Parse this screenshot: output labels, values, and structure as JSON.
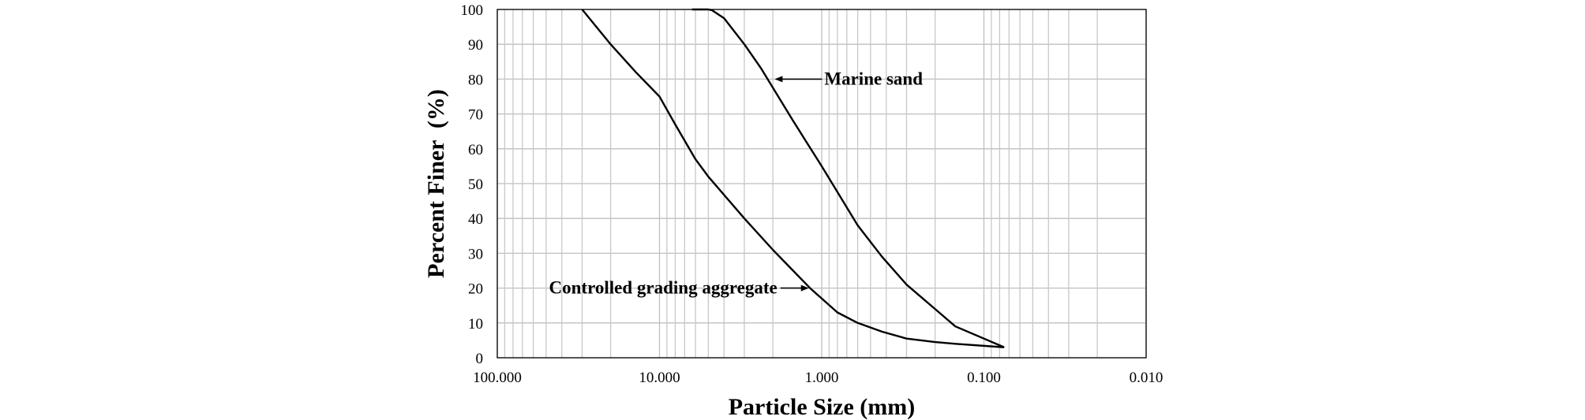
{
  "chart_data": {
    "type": "line",
    "title": "",
    "xlabel": "Particle Size (mm)",
    "ylabel": "Percent Finer  (%)",
    "x_scale": "log",
    "x_reversed": true,
    "xlim": [
      100,
      0.01
    ],
    "ylim": [
      0,
      100
    ],
    "x_ticks": [
      100,
      10,
      1,
      0.1,
      0.01
    ],
    "x_tick_labels": [
      "100.000",
      "10.000",
      "1.000",
      "0.100",
      "0.010"
    ],
    "y_ticks": [
      0,
      10,
      20,
      30,
      40,
      50,
      60,
      70,
      80,
      90,
      100
    ],
    "y_tick_labels": [
      "0",
      "10",
      "20",
      "30",
      "40",
      "50",
      "60",
      "70",
      "80",
      "90",
      "100"
    ],
    "grid": true,
    "legend": "none",
    "series": [
      {
        "name": "Marine sand",
        "x": [
          6.3,
          5.0,
          4.75,
          4.0,
          3.0,
          2.36,
          1.5,
          1.0,
          0.6,
          0.425,
          0.3,
          0.2,
          0.15,
          0.075
        ],
        "y": [
          100,
          100,
          99.8,
          97.5,
          90,
          83,
          68,
          55,
          38,
          29,
          21,
          14,
          9,
          3
        ]
      },
      {
        "name": "Controlled grading aggregate",
        "x": [
          30,
          20,
          14,
          10,
          8,
          6,
          5,
          3,
          2,
          1.18,
          0.8,
          0.6,
          0.425,
          0.3,
          0.2,
          0.15,
          0.075
        ],
        "y": [
          100,
          90,
          82,
          75,
          67,
          57,
          52,
          40,
          31,
          20,
          13,
          10,
          7.5,
          5.5,
          4.5,
          4,
          3
        ]
      }
    ],
    "annotations": [
      {
        "text": "Marine sand",
        "series": "Marine sand",
        "x": 1.95,
        "y": 80
      },
      {
        "text": "Controlled grading aggregate",
        "series": "Controlled grading aggregate",
        "x": 1.2,
        "y": 20
      }
    ]
  }
}
